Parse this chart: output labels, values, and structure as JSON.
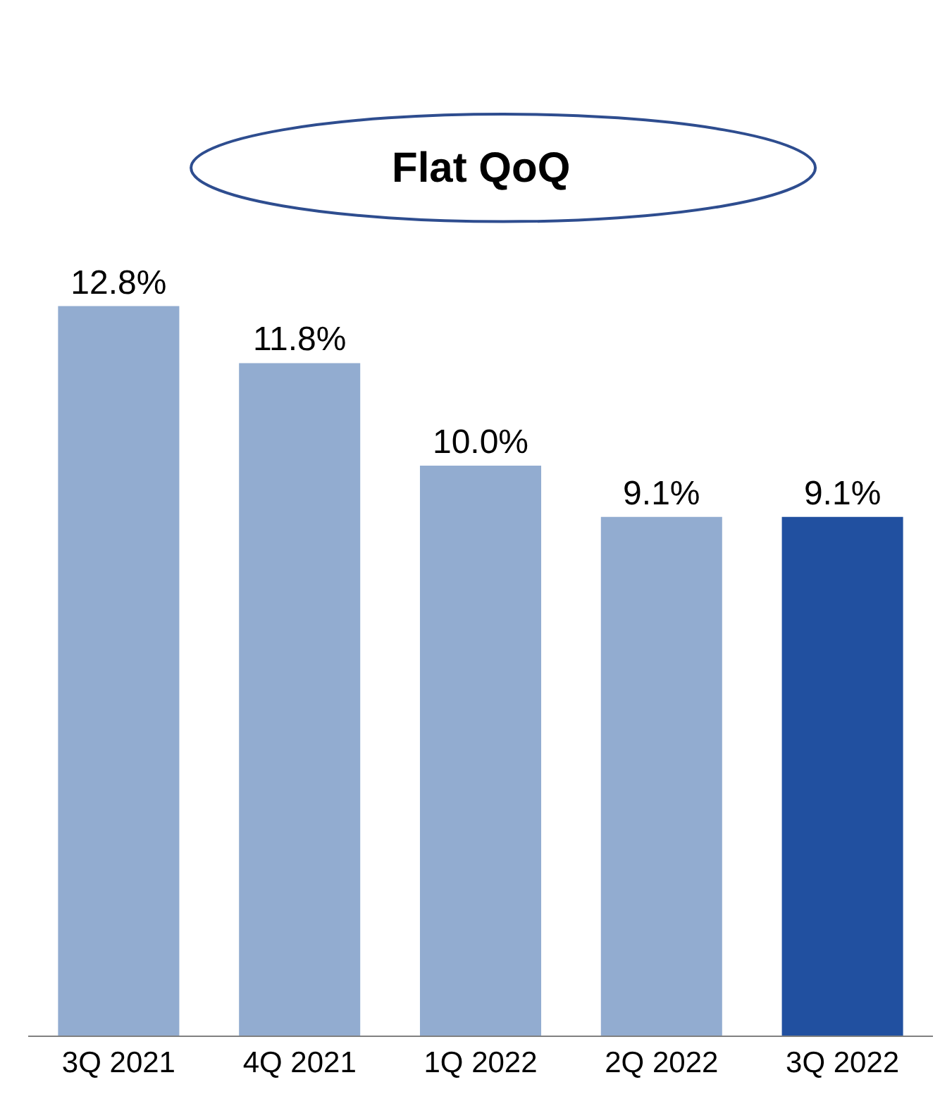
{
  "chart_data": {
    "type": "bar",
    "annotations": [
      "Flat QoQ"
    ],
    "categories": [
      "3Q 2021",
      "4Q 2021",
      "1Q 2022",
      "2Q 2022",
      "3Q 2022"
    ],
    "values": [
      12.8,
      11.8,
      10.0,
      9.1,
      9.1
    ],
    "value_labels": [
      "12.8%",
      "11.8%",
      "10.0%",
      "9.1%",
      "9.1%"
    ],
    "colors": [
      "#92acd0",
      "#92acd0",
      "#92acd0",
      "#92acd0",
      "#2150a0"
    ],
    "legend": false
  }
}
